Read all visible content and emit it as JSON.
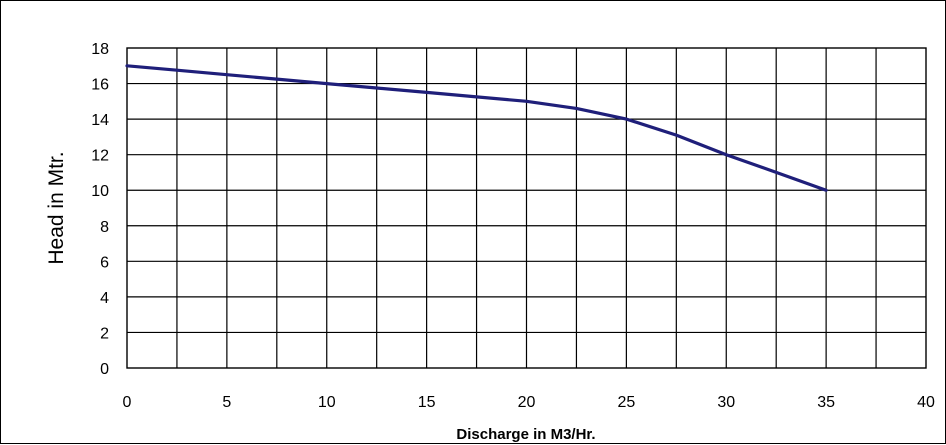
{
  "chart_data": {
    "type": "line",
    "title": "",
    "xlabel": "Discharge in M3/Hr.",
    "ylabel": "Head in Mtr.",
    "xlim": [
      0,
      40
    ],
    "ylim": [
      0,
      18
    ],
    "x_ticks": [
      "0",
      "5",
      "10",
      "15",
      "20",
      "25",
      "30",
      "35",
      "40"
    ],
    "y_ticks": [
      "0",
      "2",
      "4",
      "6",
      "8",
      "10",
      "12",
      "14",
      "16",
      "18"
    ],
    "grid": true,
    "legend": "none",
    "series": [
      {
        "color": "#1f1f7a",
        "x": [
          0,
          2.5,
          5,
          7.5,
          10,
          12.5,
          15,
          17.5,
          20,
          22.5,
          25,
          27.5,
          30,
          32.5,
          35
        ],
        "y": [
          17.0,
          16.75,
          16.5,
          16.25,
          16.0,
          15.75,
          15.5,
          15.25,
          15.0,
          14.6,
          14.0,
          13.1,
          12.0,
          11.0,
          10.0
        ]
      }
    ]
  }
}
